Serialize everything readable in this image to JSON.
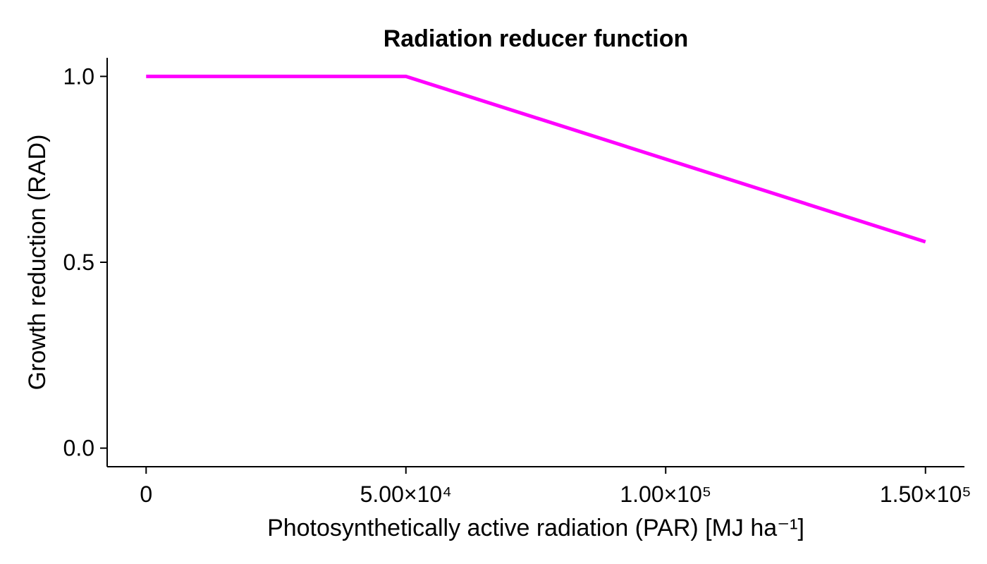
{
  "chart_data": {
    "type": "line",
    "title": "Radiation reducer function",
    "xlabel": "Photosynthetically active radiation (PAR) [MJ ha⁻¹]",
    "ylabel": "Growth reduction (RAD)",
    "xlim": [
      -7500,
      157500
    ],
    "ylim": [
      -0.05,
      1.05
    ],
    "x_ticks": [
      {
        "value": 0,
        "label": "0"
      },
      {
        "value": 50000,
        "label": "5.00×10⁴"
      },
      {
        "value": 100000,
        "label": "1.00×10⁵"
      },
      {
        "value": 150000,
        "label": "1.50×10⁵"
      }
    ],
    "y_ticks": [
      {
        "value": 0.0,
        "label": "0.0"
      },
      {
        "value": 0.5,
        "label": "0.5"
      },
      {
        "value": 1.0,
        "label": "1.0"
      }
    ],
    "grid": false,
    "series": [
      {
        "color": "#ff00ff",
        "x": [
          0,
          50000,
          150000
        ],
        "y": [
          1.0,
          1.0,
          0.555
        ]
      }
    ]
  }
}
